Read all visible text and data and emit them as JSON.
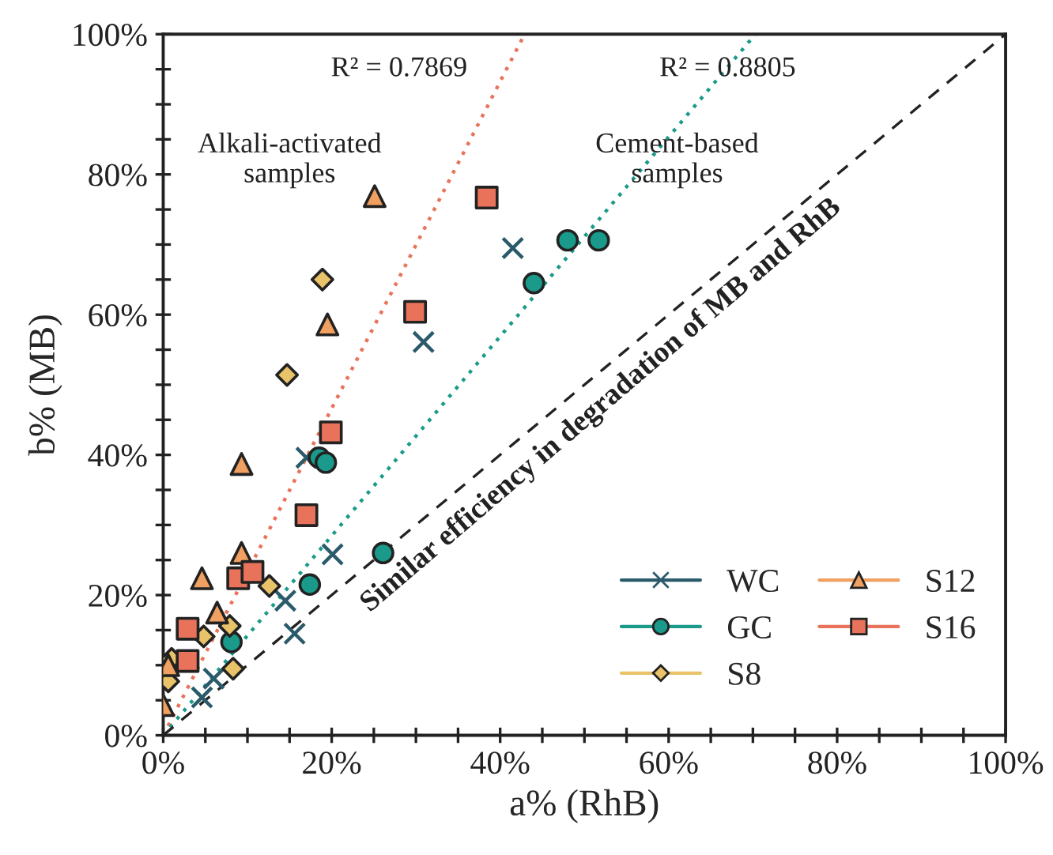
{
  "chart_data": {
    "type": "scatter",
    "xlabel": "a% (RhB)",
    "ylabel": "b% (MB)",
    "xlim": [
      0,
      100
    ],
    "ylim": [
      0,
      100
    ],
    "xticks": [
      {
        "value": 0,
        "label": "0%"
      },
      {
        "value": 5,
        "label": null
      },
      {
        "value": 10,
        "label": null
      },
      {
        "value": 15,
        "label": null
      },
      {
        "value": 20,
        "label": "20%"
      },
      {
        "value": 25,
        "label": null
      },
      {
        "value": 30,
        "label": null
      },
      {
        "value": 35,
        "label": null
      },
      {
        "value": 40,
        "label": "40%"
      },
      {
        "value": 45,
        "label": null
      },
      {
        "value": 50,
        "label": null
      },
      {
        "value": 55,
        "label": null
      },
      {
        "value": 60,
        "label": "60%"
      },
      {
        "value": 65,
        "label": null
      },
      {
        "value": 70,
        "label": null
      },
      {
        "value": 75,
        "label": null
      },
      {
        "value": 80,
        "label": "80%"
      },
      {
        "value": 85,
        "label": null
      },
      {
        "value": 90,
        "label": null
      },
      {
        "value": 95,
        "label": null
      },
      {
        "value": 100,
        "label": "100%"
      }
    ],
    "yticks": [
      {
        "value": 0,
        "label": "0%"
      },
      {
        "value": 5,
        "label": null
      },
      {
        "value": 10,
        "label": null
      },
      {
        "value": 15,
        "label": null
      },
      {
        "value": 20,
        "label": "20%"
      },
      {
        "value": 25,
        "label": null
      },
      {
        "value": 30,
        "label": null
      },
      {
        "value": 35,
        "label": null
      },
      {
        "value": 40,
        "label": "40%"
      },
      {
        "value": 45,
        "label": null
      },
      {
        "value": 50,
        "label": null
      },
      {
        "value": 55,
        "label": null
      },
      {
        "value": 60,
        "label": "60%"
      },
      {
        "value": 65,
        "label": null
      },
      {
        "value": 70,
        "label": null
      },
      {
        "value": 75,
        "label": null
      },
      {
        "value": 80,
        "label": "80%"
      },
      {
        "value": 85,
        "label": null
      },
      {
        "value": 90,
        "label": null
      },
      {
        "value": 95,
        "label": null
      },
      {
        "value": 100,
        "label": "100%"
      }
    ],
    "grid": false,
    "legend": "bottom right",
    "series": [
      {
        "name": "WC",
        "color": "#2b5a6b",
        "marker": "cross",
        "x": [
          4.6,
          6.0,
          14.5,
          15.6,
          20.1,
          17.0,
          30.9,
          41.5
        ],
        "values": [
          5.4,
          8.1,
          19.2,
          14.5,
          25.8,
          39.6,
          56.1,
          69.5
        ]
      },
      {
        "name": "GC",
        "color": "#1a9a8a",
        "marker": "circle",
        "x": [
          8.1,
          17.4,
          26.1,
          18.5,
          19.3,
          44.0,
          48.0,
          51.7
        ],
        "values": [
          13.3,
          21.5,
          26.0,
          39.6,
          38.9,
          64.5,
          70.6,
          70.6
        ]
      },
      {
        "name": "S8",
        "color": "#e8c36a",
        "marker": "diamond",
        "x": [
          0.6,
          1.0,
          4.8,
          7.9,
          8.3,
          12.6,
          14.7,
          18.9
        ],
        "values": [
          7.7,
          10.9,
          14.1,
          15.6,
          9.5,
          21.3,
          51.4,
          65.0
        ]
      },
      {
        "name": "S12",
        "color": "#f0a060",
        "marker": "triangle",
        "x": [
          0,
          0.6,
          4.6,
          6.4,
          9.3,
          9.3,
          19.5,
          25.1
        ],
        "values": [
          4.3,
          10.0,
          22.4,
          17.5,
          26.0,
          38.7,
          58.6,
          76.9
        ]
      },
      {
        "name": "S16",
        "color": "#e8735a",
        "marker": "square",
        "x": [
          2.9,
          2.9,
          8.9,
          10.6,
          17.0,
          19.9,
          38.4,
          29.9
        ],
        "values": [
          15.2,
          10.6,
          22.4,
          23.3,
          31.4,
          43.2,
          76.7,
          60.4
        ]
      },
      {
        "type": "line",
        "color": "#e8735a",
        "line_style": "dotted",
        "x": [
          0,
          42.9
        ],
        "values": [
          0,
          100
        ]
      },
      {
        "type": "line",
        "color": "#1a9a8a",
        "line_style": "dotted",
        "x": [
          0,
          70.3
        ],
        "values": [
          0,
          100
        ]
      },
      {
        "type": "line",
        "color": "#222222",
        "line_style": "dashed",
        "x": [
          0,
          100
        ],
        "values": [
          0,
          100
        ]
      }
    ],
    "annotations": [
      "R² = 0.7869",
      "Alkali-activated\nsamples",
      "R² = 0.8805",
      "Cement-based\nsamples",
      "Similar efficiency in degradation of MB and RhB"
    ]
  }
}
